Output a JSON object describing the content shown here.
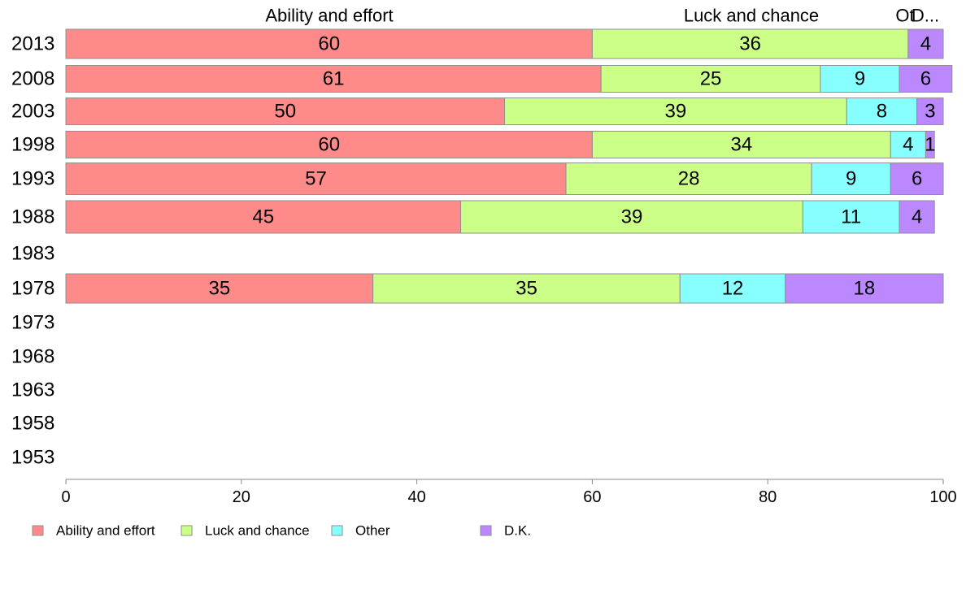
{
  "chart_data": {
    "type": "bar",
    "orientation": "horizontal",
    "stacked": true,
    "categories": [
      "2013",
      "2008",
      "2003",
      "1998",
      "1993",
      "1988",
      "1983",
      "1978",
      "1973",
      "1968",
      "1963",
      "1958",
      "1953"
    ],
    "series": [
      {
        "name": "Ability and effort",
        "color": "#ff8a8a",
        "values": [
          60,
          61,
          50,
          60,
          57,
          45,
          null,
          35,
          null,
          null,
          null,
          null,
          null
        ]
      },
      {
        "name": "Luck and chance",
        "color": "#ccff88",
        "values": [
          36,
          25,
          39,
          34,
          28,
          39,
          null,
          35,
          null,
          null,
          null,
          null,
          null
        ]
      },
      {
        "name": "Other",
        "color": "#88ffff",
        "values": [
          null,
          9,
          8,
          4,
          9,
          11,
          null,
          12,
          null,
          null,
          null,
          null,
          null
        ]
      },
      {
        "name": "D.K.",
        "color": "#bb88ff",
        "values": [
          4,
          6,
          3,
          1,
          6,
          4,
          null,
          18,
          null,
          null,
          null,
          null,
          null
        ]
      }
    ],
    "header_labels": [
      "Ability and effort",
      "Luck and chance",
      "Ot",
      "D..."
    ],
    "xlim": [
      0,
      100
    ],
    "xticks": [
      "0",
      "20",
      "40",
      "60",
      "80",
      "100"
    ],
    "legend_position": "bottom-left",
    "grid": false
  }
}
